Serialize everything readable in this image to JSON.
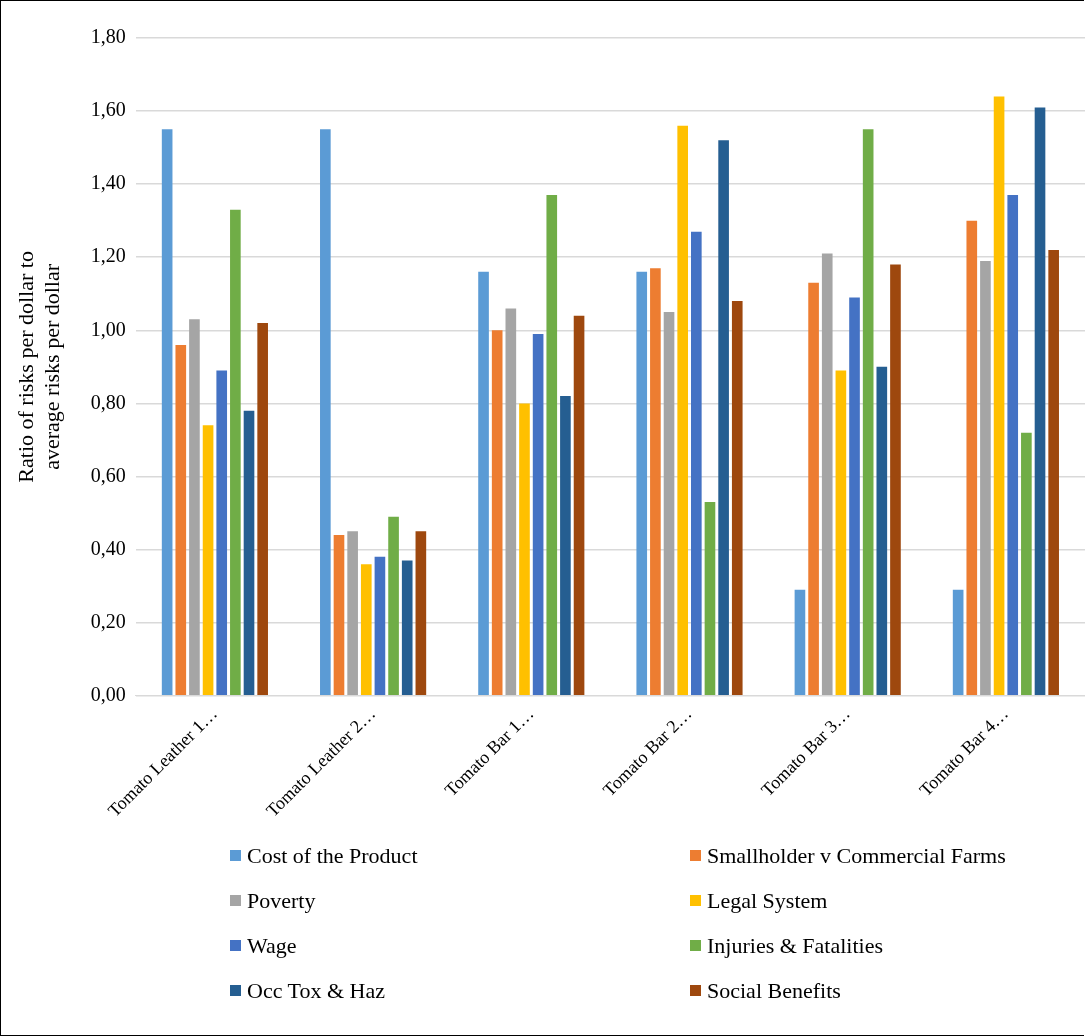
{
  "chart_data": {
    "type": "bar",
    "ylabel": "Ratio of risks per dollar to average risks per dollar",
    "categories": [
      "Tomato Leather 1…",
      "Tomato Leather 2…",
      "Tomato Bar 1…",
      "Tomato Bar 2…",
      "Tomato Bar 3…",
      "Tomato Bar 4…"
    ],
    "series": [
      {
        "name": "Cost of the Product",
        "color": "#5b9bd5",
        "values": [
          1.55,
          1.55,
          1.16,
          1.16,
          0.29,
          0.29
        ]
      },
      {
        "name": "Smallholder v Commercial Farms",
        "color": "#ed7d31",
        "values": [
          0.96,
          0.44,
          1.0,
          1.17,
          1.13,
          1.3
        ]
      },
      {
        "name": "Poverty",
        "color": "#a5a5a5",
        "values": [
          1.03,
          0.45,
          1.06,
          1.05,
          1.21,
          1.19
        ]
      },
      {
        "name": "Legal System",
        "color": "#ffc000",
        "values": [
          0.74,
          0.36,
          0.8,
          1.56,
          0.89,
          1.64
        ]
      },
      {
        "name": "Wage",
        "color": "#4472c4",
        "values": [
          0.89,
          0.38,
          0.99,
          1.27,
          1.09,
          1.37
        ]
      },
      {
        "name": "Injuries & Fatalities",
        "color": "#70ad47",
        "values": [
          1.33,
          0.49,
          1.37,
          0.53,
          1.55,
          0.72
        ]
      },
      {
        "name": "Occ Tox & Haz",
        "color": "#255e91",
        "values": [
          0.78,
          0.37,
          0.82,
          1.52,
          0.9,
          1.61
        ]
      },
      {
        "name": "Social Benefits",
        "color": "#9e480e",
        "values": [
          1.02,
          0.45,
          1.04,
          1.08,
          1.18,
          1.22
        ]
      }
    ],
    "ylim": [
      0,
      1.8
    ],
    "yticks": [
      {
        "value": 0,
        "label": "0,00"
      },
      {
        "value": 0.2,
        "label": "0,20"
      },
      {
        "value": 0.4,
        "label": "0,40"
      },
      {
        "value": 0.6,
        "label": "0,60"
      },
      {
        "value": 0.8,
        "label": "0,80"
      },
      {
        "value": 1,
        "label": "1,00"
      },
      {
        "value": 1.2,
        "label": "1,20"
      },
      {
        "value": 1.4,
        "label": "1,40"
      },
      {
        "value": 1.6,
        "label": "1,60"
      },
      {
        "value": 1.8,
        "label": "1,80"
      }
    ],
    "grid": "y",
    "legend": "bottom"
  }
}
